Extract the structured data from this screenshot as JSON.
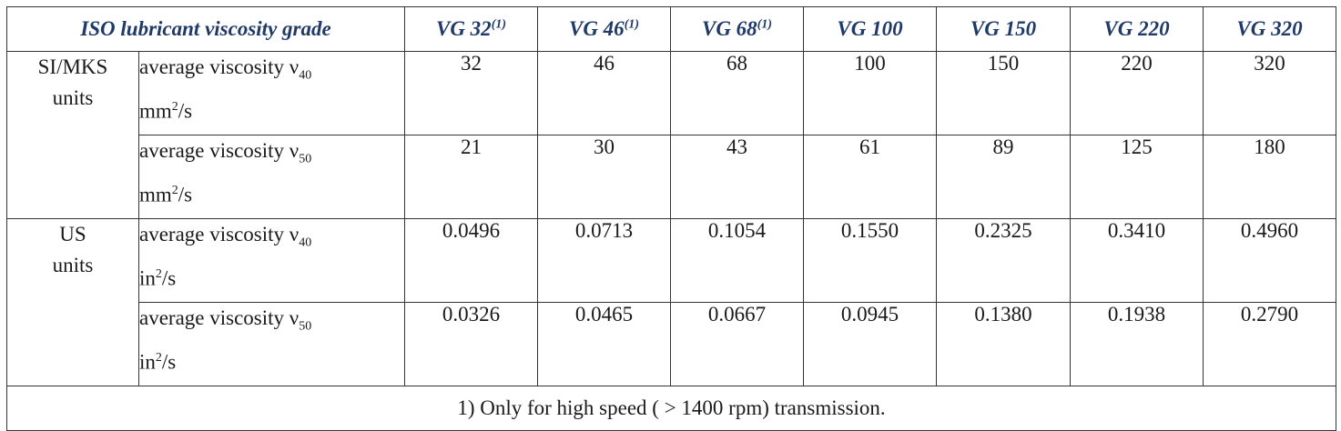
{
  "table": {
    "header": {
      "title": "ISO lubricant viscosity grade",
      "grades": [
        {
          "label": "VG 32",
          "note": "(1)"
        },
        {
          "label": "VG 46",
          "note": "(1)"
        },
        {
          "label": "VG 68",
          "note": "(1)"
        },
        {
          "label": "VG 100",
          "note": ""
        },
        {
          "label": "VG 150",
          "note": ""
        },
        {
          "label": "VG 220",
          "note": ""
        },
        {
          "label": "VG 320",
          "note": ""
        }
      ]
    },
    "groups": [
      {
        "name_line1": "SI/MKS",
        "name_line2": "units",
        "rows": [
          {
            "label": "average viscosity ν",
            "sub": "40",
            "unit_base": "mm",
            "unit_sup": "2",
            "unit_rest": "/s",
            "values": [
              "32",
              "46",
              "68",
              "100",
              "150",
              "220",
              "320"
            ]
          },
          {
            "label": "average viscosity ν",
            "sub": "50",
            "unit_base": "mm",
            "unit_sup": "2",
            "unit_rest": "/s",
            "values": [
              "21",
              "30",
              "43",
              "61",
              "89",
              "125",
              "180"
            ]
          }
        ]
      },
      {
        "name_line1": "US",
        "name_line2": "units",
        "rows": [
          {
            "label": "average viscosity ν",
            "sub": "40",
            "unit_base": "in",
            "unit_sup": "2",
            "unit_rest": "/s",
            "values": [
              "0.0496",
              "0.0713",
              "0.1054",
              "0.1550",
              "0.2325",
              "0.3410",
              "0.4960"
            ]
          },
          {
            "label": "average viscosity ν",
            "sub": "50",
            "unit_base": "in",
            "unit_sup": "2",
            "unit_rest": "/s",
            "values": [
              "0.0326",
              "0.0465",
              "0.0667",
              "0.0945",
              "0.1380",
              "0.1938",
              "0.2790"
            ]
          }
        ]
      }
    ],
    "footnote": "1) Only for high speed ( > 1400 rpm) transmission."
  }
}
